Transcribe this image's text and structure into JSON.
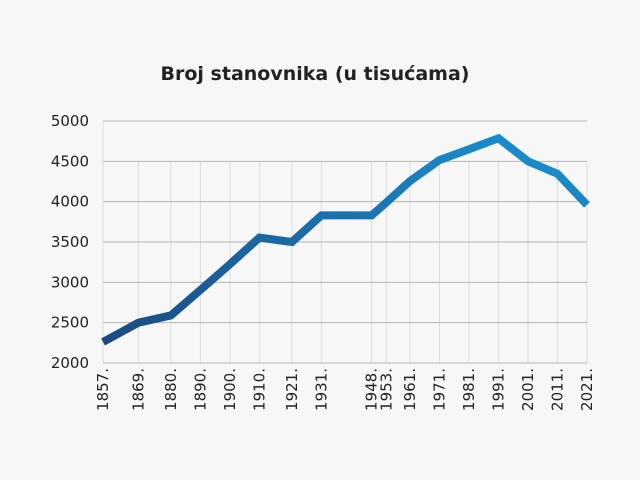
{
  "chart_data": {
    "type": "line",
    "title": "Broj stanovnika (u tisućama)",
    "xlabel": "",
    "ylabel": "",
    "ylim": [
      2000,
      5000
    ],
    "yticks": [
      "2000",
      "2500",
      "3000",
      "3500",
      "4000",
      "4500",
      "5000"
    ],
    "x": [
      1857,
      1869,
      1880,
      1890,
      1900,
      1910,
      1921,
      1931,
      1948,
      1953,
      1961,
      1971,
      1981,
      1991,
      2001,
      2011,
      2021
    ],
    "xtick_labels": [
      "1857.",
      "1869.",
      "1880.",
      "1890.",
      "1900.",
      "1910.",
      "1921.",
      "1931.",
      "1948.",
      "1953.",
      "1961.",
      "1971.",
      "1981.",
      "1991.",
      "2001.",
      "2011.",
      "2021."
    ],
    "series": [
      {
        "name": "Broj stanovnika",
        "values": [
          2260,
          2500,
          2590,
          2905,
          3225,
          3555,
          3500,
          3830,
          3830,
          3990,
          4255,
          4515,
          4650,
          4785,
          4500,
          4345,
          3960
        ]
      }
    ],
    "grid": true,
    "colors": {
      "start": "#1b4a82",
      "end": "#1a92d2",
      "grid_h": "#b5b5b5",
      "grid_v": "#dddddd"
    }
  }
}
